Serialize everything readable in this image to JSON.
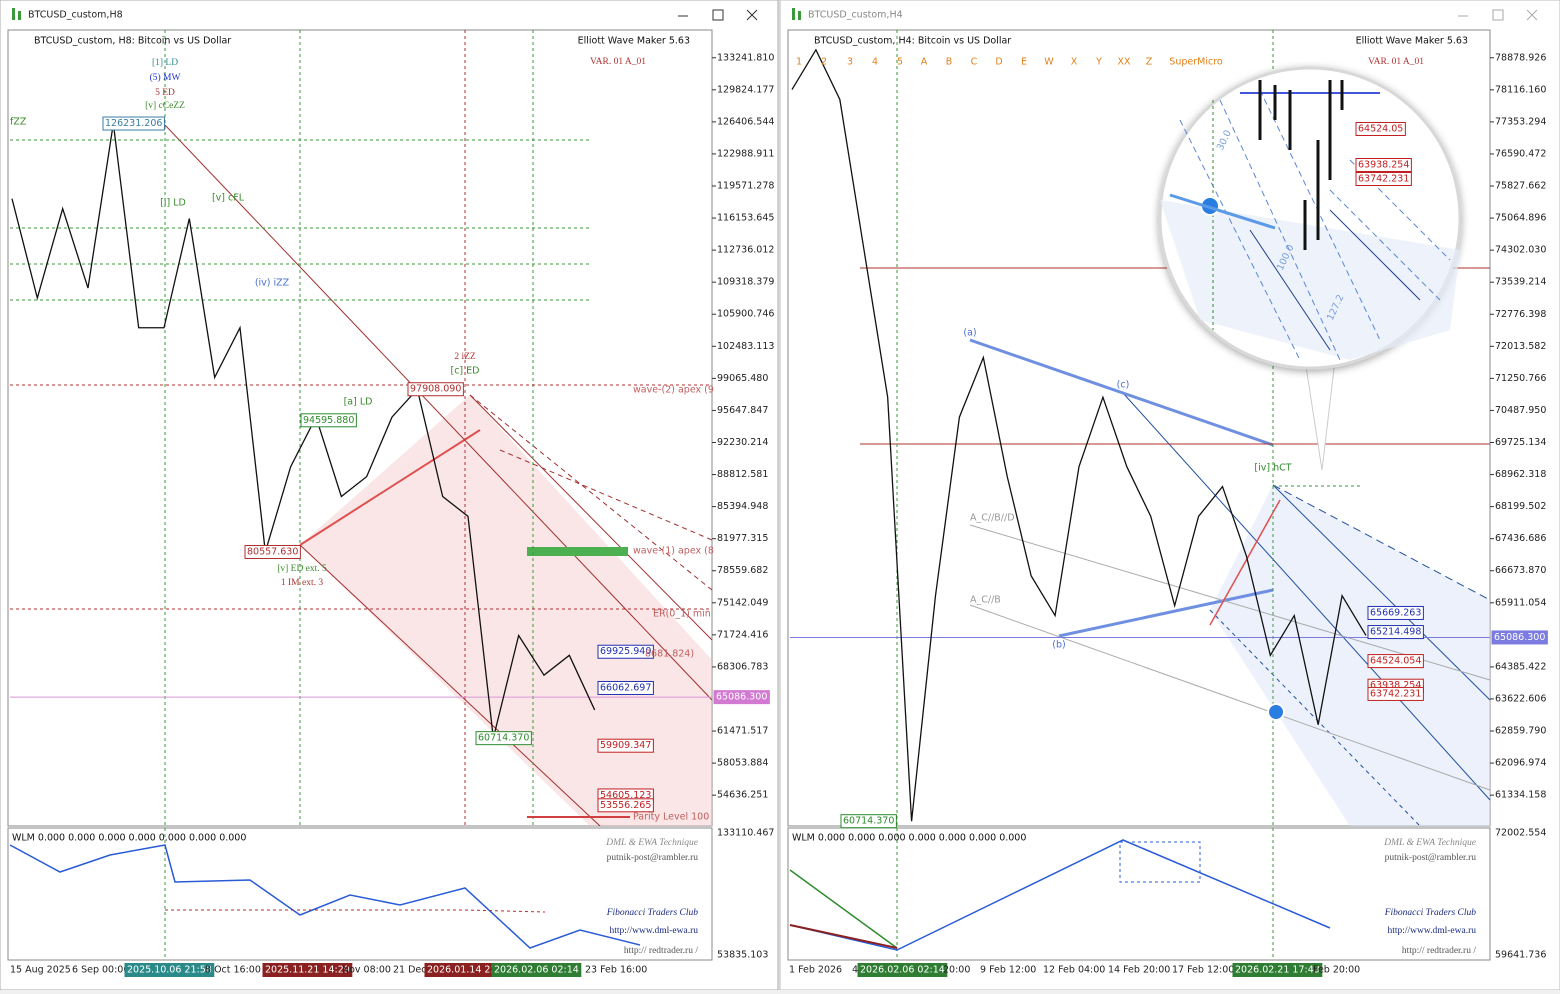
{
  "windows": [
    {
      "title": "BTCUSD_custom,H8",
      "header": "BTCUSD_custom, H8:  Bitcoin vs US Dollar",
      "plugin": "Elliott Wave Maker 5.63",
      "variant": "VAR. 01 A_01",
      "ylim": [
        51350,
        136200
      ],
      "price_ticks": [
        {
          "value": 133241.81,
          "label": "133241.810"
        },
        129824.177,
        126406.544,
        122988.911,
        119571.278,
        116153.645,
        112736.012,
        109318.379,
        105900.746,
        102483.113,
        {
          "value": 99065.48,
          "label": "99065.480"
        },
        95647.847,
        92230.214,
        88812.581,
        85394.948,
        81977.315,
        78559.682,
        75142.049,
        71724.416,
        68306.783,
        61471.517,
        58053.884,
        54636.251
      ],
      "current_price": {
        "value": 65086.3,
        "label": "65086.300"
      },
      "price_path": [
        118216,
        107635,
        117158,
        108693,
        126231,
        104461,
        104461,
        116100,
        99170,
        104461,
        80558,
        89648,
        94938,
        86473,
        88589,
        94938,
        97908,
        86473,
        84357,
        60714,
        71660,
        67428,
        69544,
        63724
      ],
      "price_boxes": [
        "126231.206",
        "97908.090",
        "94595.880",
        "80557.630",
        "60714.370",
        "69925.940",
        "66062.697",
        "59909.347",
        "54605.123",
        "53556.265"
      ],
      "annotations": [
        "[1] LD",
        "(5) MW",
        "5 ED",
        "[v] cCeZZ",
        "[v] cFL",
        "[a] LD",
        "2 iZZ",
        "[c] ED",
        "[v] ED ext. 5",
        "1 IM ext. 3",
        "wave-(2) apex (9",
        "wave-(1) apex (8",
        "ER(0_1) min",
        "Parity Level 100",
        "8681.824)",
        "(iv) iZZ",
        "[i] LD",
        "fZZ"
      ],
      "indicator_label": "WLM 0.000 0.000 0.000 0.000 0.000 0.000 0.000",
      "indicator_ticks": [
        133110.467,
        53835.103
      ],
      "credits": [
        "DML & EWA Technique",
        "putnik-post@rambler.ru",
        "Fibonacci    Traders    Club",
        "http://www.dml-ewa.ru",
        "http:// redtrader.ru /"
      ],
      "time_labels": [
        "15 Aug 2025",
        "6 Sep 00:00",
        "2025.10.06 21:58",
        "8 Oct 16:00",
        "2025.11.21 14:29",
        "Nov 08:00",
        "21 Dec",
        "2026.01.14 22:",
        "2026.02.06 02:14",
        "23 Feb 16:00"
      ]
    },
    {
      "title": "BTCUSD_custom,H4",
      "header": "BTCUSD_custom, H4:  Bitcoin vs US Dollar",
      "plugin": "Elliott Wave Maker 5.63",
      "variant": "VAR. 01 A_01",
      "ylim": [
        60600,
        79540
      ],
      "price_ticks": [
        78878.926,
        {
          "value": 78116.16,
          "label": "78116.160"
        },
        77353.294,
        76590.472,
        75827.662,
        75064.896,
        {
          "value": 74302.03,
          "label": "74302.030"
        },
        73539.214,
        72776.398,
        72013.582,
        71250.766,
        {
          "value": 70487.95,
          "label": "70487.950"
        },
        69725.134,
        68962.318,
        68199.502,
        67436.686,
        {
          "value": 66673.87,
          "label": "66673.870"
        },
        65911.054,
        64385.422,
        63622.606,
        {
          "value": 62859.79,
          "label": "62859.790"
        },
        62096.974,
        61334.158
      ],
      "current_price": {
        "value": 65086.3,
        "label": "65086.300"
      },
      "price_path": [
        78123,
        79068,
        77887,
        74345,
        70803,
        60714,
        66080,
        70330,
        71747,
        68913,
        66552,
        65607,
        69149,
        70803,
        69149,
        67968,
        65844,
        67968,
        68677,
        67024,
        64662,
        65607,
        63010,
        66080,
        65135
      ],
      "price_boxes": [
        "65669.263",
        "65214.498",
        "64524.054",
        "63938.254",
        "63742.231",
        "60714.370"
      ],
      "annotations": [
        "[iv] hCT",
        "(a)",
        "(c)",
        "(b)",
        "A_C//B//D",
        "A_C//B",
        "1",
        "2",
        "3",
        "4",
        "5",
        "A",
        "B",
        "C",
        "D",
        "E",
        "W",
        "X",
        "Y",
        "XX",
        "Z",
        "SuperMicro"
      ],
      "magnifier_labels": [
        "64524.05",
        "63938.254",
        "63742.231",
        "30.0",
        "100.0",
        "127.2"
      ],
      "indicator_label": "WLM 0.000 0.000 0.000 0.000 0.000 0.000 0.000",
      "indicator_ticks": [
        72002.554,
        59641.736
      ],
      "credits": [
        "DML & EWA Technique",
        "putnik-post@rambler.ru",
        "Fibonacci    Traders    Club",
        "http://www.dml-ewa.ru",
        "http:// redtrader.ru /"
      ],
      "time_labels": [
        "1 Feb 2026",
        "4",
        "2026.02.06 02:14",
        "20:00",
        "9 Feb 12:00",
        "12 Feb 04:00",
        "14 Feb 20:00",
        "17 Feb 12:00",
        "2026.02.21 17:43",
        "Feb 20:00"
      ]
    }
  ]
}
